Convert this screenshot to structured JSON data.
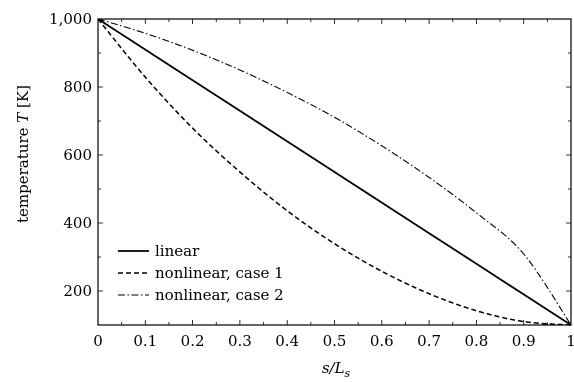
{
  "chart_data": {
    "type": "line",
    "title": "",
    "xlabel": "s/L",
    "xlabel_sub": "s",
    "ylabel": "temperature T [K]",
    "ylabel_parts": {
      "pre": "temperature ",
      "var": "T",
      "post": " [K]"
    },
    "xlim": [
      0,
      1
    ],
    "ylim": [
      100,
      1000
    ],
    "x_ticks": [
      0,
      0.1,
      0.2,
      0.3,
      0.4,
      0.5,
      0.6,
      0.7,
      0.8,
      0.9,
      1
    ],
    "x_tick_labels": [
      "0",
      "0.1",
      "0.2",
      "0.3",
      "0.4",
      "0.5",
      "0.6",
      "0.7",
      "0.8",
      "0.9",
      "1"
    ],
    "y_ticks": [
      200,
      400,
      600,
      800,
      1000
    ],
    "y_tick_labels": [
      "200",
      "400",
      "600",
      "800",
      "1,000"
    ],
    "grid": false,
    "legend_position": "bottom-left",
    "x": [
      0,
      0.1,
      0.2,
      0.3,
      0.4,
      0.5,
      0.6,
      0.7,
      0.8,
      0.9,
      1.0
    ],
    "series": [
      {
        "name": "linear",
        "dash": "solid",
        "values": [
          1000,
          910,
          820,
          730,
          640,
          550,
          460,
          370,
          280,
          190,
          100
        ]
      },
      {
        "name": "nonlinear, case 1",
        "dash": "dashed",
        "values": [
          1000,
          829,
          679,
          550,
          436,
          339,
          258,
          192,
          142,
          110,
          100
        ]
      },
      {
        "name": "nonlinear, case 2",
        "dash": "dashdot",
        "values": [
          1000,
          958,
          908,
          850,
          784,
          711,
          627,
          534,
          430,
          309,
          100
        ]
      }
    ]
  }
}
